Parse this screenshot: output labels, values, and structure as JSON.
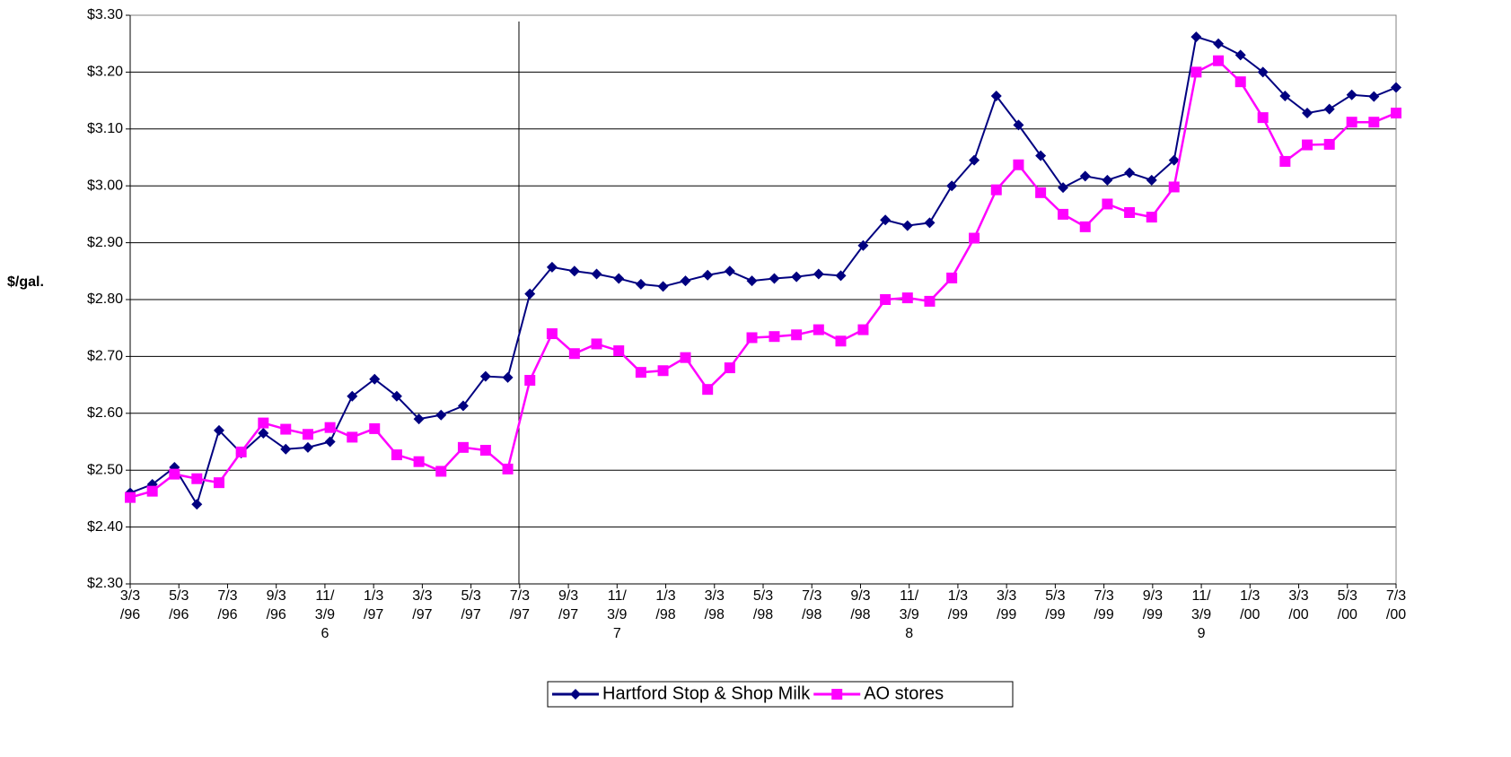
{
  "chart_data": {
    "type": "line",
    "y_label": "$/gal.",
    "x": [
      0,
      0.91,
      1.82,
      2.74,
      3.65,
      4.56,
      5.47,
      6.39,
      7.3,
      8.21,
      9.12,
      10.04,
      10.95,
      11.86,
      12.77,
      13.68,
      14.6,
      15.51,
      16.42,
      17.33,
      18.25,
      19.16,
      20.07,
      20.98,
      21.89,
      22.81,
      23.72,
      24.63,
      25.54,
      26.46,
      27.37,
      28.28,
      29.19,
      30.11,
      31.02,
      31.93,
      32.84,
      33.75,
      34.67,
      35.58,
      36.49,
      37.4,
      38.32,
      39.23,
      40.14,
      41.05,
      41.96,
      42.88,
      43.79,
      44.7,
      45.61,
      46.53,
      47.44,
      48.35,
      49.26,
      50.18,
      51.09,
      52
    ],
    "series": [
      {
        "name": "Hartford Stop & Shop Milk",
        "color": "#000080",
        "marker": "diamond",
        "values": [
          2.46,
          2.475,
          2.505,
          2.44,
          2.57,
          2.53,
          2.565,
          2.537,
          2.54,
          2.55,
          2.63,
          2.66,
          2.63,
          2.59,
          2.597,
          2.613,
          2.665,
          2.663,
          2.81,
          2.857,
          2.85,
          2.845,
          2.837,
          2.827,
          2.823,
          2.833,
          2.843,
          2.85,
          2.833,
          2.837,
          2.84,
          2.845,
          2.842,
          2.895,
          2.94,
          2.93,
          2.935,
          3.0,
          3.045,
          3.158,
          3.107,
          3.053,
          2.997,
          3.017,
          3.01,
          3.023,
          3.01,
          3.045,
          3.262,
          3.25,
          3.23,
          3.2,
          3.158,
          3.128,
          3.135,
          3.16,
          3.157,
          3.173
        ]
      },
      {
        "name": "AO stores",
        "color": "#ff00ff",
        "marker": "square",
        "values": [
          2.452,
          2.463,
          2.493,
          2.485,
          2.478,
          2.532,
          2.583,
          2.572,
          2.563,
          2.575,
          2.558,
          2.573,
          2.527,
          2.515,
          2.498,
          2.54,
          2.535,
          2.502,
          2.658,
          2.74,
          2.705,
          2.722,
          2.71,
          2.672,
          2.675,
          2.698,
          2.642,
          2.68,
          2.733,
          2.735,
          2.738,
          2.747,
          2.727,
          2.747,
          2.8,
          2.803,
          2.797,
          2.838,
          2.908,
          2.993,
          3.037,
          2.988,
          2.95,
          2.928,
          2.968,
          2.953,
          2.945,
          2.998,
          3.2,
          3.22,
          3.183,
          3.12,
          3.043,
          3.072,
          3.073,
          3.112,
          3.112,
          3.128
        ]
      }
    ],
    "xlim": [
      0,
      52
    ],
    "xticks": [
      {
        "value": 0,
        "label": "3/3/96"
      },
      {
        "value": 2,
        "label": "5/3/96"
      },
      {
        "value": 4,
        "label": "7/3/96"
      },
      {
        "value": 6,
        "label": "9/3/96"
      },
      {
        "value": 8,
        "label": "11/3/96"
      },
      {
        "value": 10,
        "label": "1/3/97"
      },
      {
        "value": 12,
        "label": "3/3/97"
      },
      {
        "value": 14,
        "label": "5/3/97"
      },
      {
        "value": 16,
        "label": "7/3/97"
      },
      {
        "value": 18,
        "label": "9/3/97"
      },
      {
        "value": 20,
        "label": "11/3/97"
      },
      {
        "value": 22,
        "label": "1/3/98"
      },
      {
        "value": 24,
        "label": "3/3/98"
      },
      {
        "value": 26,
        "label": "5/3/98"
      },
      {
        "value": 28,
        "label": "7/3/98"
      },
      {
        "value": 30,
        "label": "9/3/98"
      },
      {
        "value": 32,
        "label": "11/3/98"
      },
      {
        "value": 34,
        "label": "1/3/99"
      },
      {
        "value": 36,
        "label": "3/3/99"
      },
      {
        "value": 38,
        "label": "5/3/99"
      },
      {
        "value": 40,
        "label": "7/3/99"
      },
      {
        "value": 42,
        "label": "9/3/99"
      },
      {
        "value": 44,
        "label": "11/3/99"
      },
      {
        "value": 46,
        "label": "1/3/00"
      },
      {
        "value": 48,
        "label": "3/3/00"
      },
      {
        "value": 50,
        "label": "5/3/00"
      },
      {
        "value": 52,
        "label": "7/3/00"
      }
    ],
    "ylim": [
      2.3,
      3.3
    ],
    "yticks": [
      {
        "value": 2.3,
        "label": "$2.30"
      },
      {
        "value": 2.4,
        "label": "$2.40"
      },
      {
        "value": 2.5,
        "label": "$2.50"
      },
      {
        "value": 2.6,
        "label": "$2.60"
      },
      {
        "value": 2.7,
        "label": "$2.70"
      },
      {
        "value": 2.8,
        "label": "$2.80"
      },
      {
        "value": 2.9,
        "label": "$2.90"
      },
      {
        "value": 3.0,
        "label": "$3.00"
      },
      {
        "value": 3.1,
        "label": "$3.10"
      },
      {
        "value": 3.2,
        "label": "$3.20"
      },
      {
        "value": 3.3,
        "label": "$3.30"
      }
    ],
    "grid": true,
    "legend": "bottom"
  }
}
